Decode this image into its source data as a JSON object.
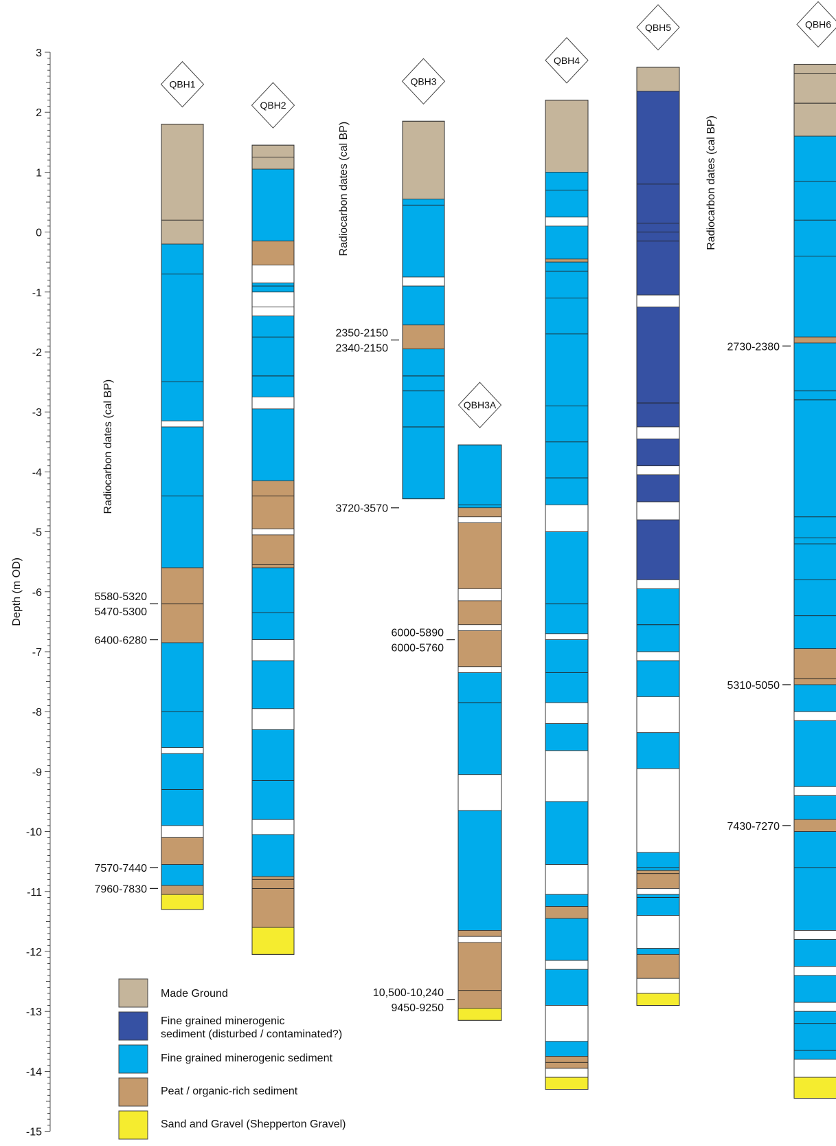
{
  "colors": {
    "made_ground": "#c5b59b",
    "fine_disturbed": "#3651a3",
    "fine": "#00aceb",
    "peat": "#c59a6c",
    "sand_gravel": "#f5ec2f",
    "gap": "#ffffff"
  },
  "axis": {
    "label": "Depth (m OD)",
    "min": -15,
    "max": 3,
    "ticks": [
      "3",
      "2",
      "1",
      "0",
      "-1",
      "-2",
      "-3",
      "-4",
      "-5",
      "-6",
      "-7",
      "-8",
      "-9",
      "-10",
      "-11",
      "-12",
      "-13",
      "-14",
      "-15"
    ]
  },
  "radiocarbon_heading": "Radiocarbon dates (cal BP)",
  "legend": [
    {
      "key": "made_ground",
      "label": "Made Ground"
    },
    {
      "key": "fine_disturbed",
      "label": "Fine grained minerogenic",
      "label2": "sediment (disturbed / contaminated?)"
    },
    {
      "key": "fine",
      "label": "Fine grained minerogenic sediment"
    },
    {
      "key": "peat",
      "label": "Peat / organic-rich sediment"
    },
    {
      "key": "sand_gravel",
      "label": "Sand and Gravel (Shepperton Gravel)"
    }
  ],
  "boreholes": [
    {
      "name": "QBH1",
      "top": 1.8,
      "layers": [
        {
          "b": -0.2,
          "t": "made_ground",
          "l": [
            0.2
          ]
        },
        {
          "b": -3.15,
          "t": "fine",
          "l": [
            -0.7,
            -2.5
          ]
        },
        {
          "b": -3.25,
          "t": "gap"
        },
        {
          "b": -5.6,
          "t": "fine",
          "l": [
            -4.4
          ]
        },
        {
          "b": -6.85,
          "t": "peat",
          "l": [
            -6.2
          ]
        },
        {
          "b": -8.6,
          "t": "fine",
          "l": [
            -8.0
          ]
        },
        {
          "b": -8.7,
          "t": "gap"
        },
        {
          "b": -9.9,
          "t": "fine",
          "l": [
            -9.3
          ]
        },
        {
          "b": -10.1,
          "t": "gap"
        },
        {
          "b": -10.55,
          "t": "peat"
        },
        {
          "b": -10.9,
          "t": "fine"
        },
        {
          "b": -11.05,
          "t": "peat"
        },
        {
          "b": -11.3,
          "t": "sand_gravel"
        }
      ],
      "dates": [
        {
          "depth": -6.2,
          "lines": [
            "5580-5320",
            "5470-5300"
          ]
        },
        {
          "depth": -6.8,
          "lines": [
            "6400-6280"
          ]
        },
        {
          "depth": -10.6,
          "lines": [
            "7570-7440"
          ]
        },
        {
          "depth": -10.95,
          "lines": [
            "7960-7830"
          ]
        }
      ]
    },
    {
      "name": "QBH2",
      "top": 1.45,
      "layers": [
        {
          "b": 1.05,
          "t": "made_ground",
          "l": [
            1.25
          ]
        },
        {
          "b": -0.15,
          "t": "fine"
        },
        {
          "b": -0.55,
          "t": "peat"
        },
        {
          "b": -0.85,
          "t": "gap"
        },
        {
          "b": -1.0,
          "t": "fine",
          "l": [
            -0.9
          ]
        },
        {
          "b": -1.4,
          "t": "gap",
          "l": [
            -1.25
          ]
        },
        {
          "b": -2.75,
          "t": "fine",
          "l": [
            -1.75,
            -2.4
          ]
        },
        {
          "b": -2.95,
          "t": "gap"
        },
        {
          "b": -4.15,
          "t": "peat_fix_fine"
        },
        {
          "b": -4.95,
          "t": "peat",
          "l": [
            -4.4
          ]
        },
        {
          "b": -5.05,
          "t": "gap"
        },
        {
          "b": -5.6,
          "t": "peat",
          "l": [
            -5.55
          ]
        },
        {
          "b": -6.8,
          "t": "fine",
          "l": [
            -6.35
          ]
        },
        {
          "b": -7.15,
          "t": "gap"
        },
        {
          "b": -7.95,
          "t": "fine"
        },
        {
          "b": -8.3,
          "t": "gap"
        },
        {
          "b": -9.8,
          "t": "fine",
          "l": [
            -9.15
          ]
        },
        {
          "b": -10.05,
          "t": "gap"
        },
        {
          "b": -10.75,
          "t": "fine"
        },
        {
          "b": -11.6,
          "t": "peat",
          "l": [
            -10.8,
            -10.95
          ]
        },
        {
          "b": -12.05,
          "t": "sand_gravel"
        }
      ],
      "dates": []
    },
    {
      "name": "QBH3",
      "top": 1.85,
      "layers": [
        {
          "b": 0.55,
          "t": "made_ground"
        },
        {
          "b": -0.75,
          "t": "fine",
          "l": [
            0.45
          ]
        },
        {
          "b": -0.9,
          "t": "gap"
        },
        {
          "b": -1.55,
          "t": "fine"
        },
        {
          "b": -1.95,
          "t": "peat"
        },
        {
          "b": -4.45,
          "t": "fine",
          "l": [
            -2.4,
            -2.65,
            -3.25
          ]
        }
      ],
      "dates": [
        {
          "depth": -1.8,
          "lines": [
            "2350-2150",
            "2340-2150"
          ]
        },
        {
          "depth": -4.6,
          "lines": [
            "3720-3570"
          ]
        }
      ]
    },
    {
      "name": "QBH3A",
      "top": -3.55,
      "layers": [
        {
          "b": -4.6,
          "t": "fine",
          "l": [
            -4.55
          ]
        },
        {
          "b": -4.75,
          "t": "peat"
        },
        {
          "b": -4.85,
          "t": "gap"
        },
        {
          "b": -5.95,
          "t": "peat"
        },
        {
          "b": -6.15,
          "t": "gap"
        },
        {
          "b": -6.55,
          "t": "peat"
        },
        {
          "b": -6.65,
          "t": "gap"
        },
        {
          "b": -7.25,
          "t": "peat"
        },
        {
          "b": -7.35,
          "t": "gap"
        },
        {
          "b": -9.05,
          "t": "fine",
          "l": [
            -7.85
          ]
        },
        {
          "b": -9.65,
          "t": "gap"
        },
        {
          "b": -11.65,
          "t": "fine"
        },
        {
          "b": -11.75,
          "t": "peat"
        },
        {
          "b": -11.85,
          "t": "gap"
        },
        {
          "b": -12.95,
          "t": "peat",
          "l": [
            -12.65
          ]
        },
        {
          "b": -13.15,
          "t": "sand_gravel"
        }
      ],
      "dates": [
        {
          "depth": -6.8,
          "lines": [
            "6000-5890",
            "6000-5760"
          ]
        },
        {
          "depth": -12.8,
          "lines": [
            "10,500-10,240",
            "9450-9250"
          ]
        }
      ]
    },
    {
      "name": "QBH4",
      "top": 2.2,
      "layers": [
        {
          "b": 1.0,
          "t": "made_ground"
        },
        {
          "b": 0.25,
          "t": "fine",
          "l": [
            0.7
          ]
        },
        {
          "b": 0.1,
          "t": "gap"
        },
        {
          "b": -0.45,
          "t": "fine"
        },
        {
          "b": -0.5,
          "t": "peat"
        },
        {
          "b": -4.55,
          "t": "fine",
          "l": [
            -0.65,
            -1.1,
            -1.7,
            -2.9,
            -3.5,
            -4.1
          ]
        },
        {
          "b": -5.0,
          "t": "gap"
        },
        {
          "b": -6.7,
          "t": "fine",
          "l": [
            -6.2
          ]
        },
        {
          "b": -6.8,
          "t": "gap"
        },
        {
          "b": -7.85,
          "t": "fine",
          "l": [
            -7.35
          ]
        },
        {
          "b": -8.2,
          "t": "gap"
        },
        {
          "b": -8.65,
          "t": "fine"
        },
        {
          "b": -9.5,
          "t": "gap"
        },
        {
          "b": -10.55,
          "t": "fine"
        },
        {
          "b": -11.05,
          "t": "gap"
        },
        {
          "b": -11.25,
          "t": "fine"
        },
        {
          "b": -11.45,
          "t": "peat"
        },
        {
          "b": -12.15,
          "t": "fine"
        },
        {
          "b": -12.3,
          "t": "gap"
        },
        {
          "b": -12.9,
          "t": "fine"
        },
        {
          "b": -13.5,
          "t": "gap"
        },
        {
          "b": -13.75,
          "t": "fine"
        },
        {
          "b": -13.95,
          "t": "peat",
          "l": [
            -13.85
          ]
        },
        {
          "b": -14.1,
          "t": "gap"
        },
        {
          "b": -14.3,
          "t": "sand_gravel"
        }
      ],
      "dates": []
    },
    {
      "name": "QBH5",
      "top": 2.75,
      "layers": [
        {
          "b": 2.35,
          "t": "made_ground"
        },
        {
          "b": -1.05,
          "t": "fine_disturbed",
          "l": [
            0.8,
            0.15,
            0.0,
            -0.15
          ]
        },
        {
          "b": -1.25,
          "t": "gap"
        },
        {
          "b": -3.25,
          "t": "fine_disturbed",
          "l": [
            -2.85
          ]
        },
        {
          "b": -3.45,
          "t": "gap"
        },
        {
          "b": -3.9,
          "t": "fine_disturbed"
        },
        {
          "b": -4.05,
          "t": "gap"
        },
        {
          "b": -4.5,
          "t": "fine_disturbed"
        },
        {
          "b": -4.8,
          "t": "gap"
        },
        {
          "b": -5.8,
          "t": "fine_disturbed"
        },
        {
          "b": -5.95,
          "t": "gap"
        },
        {
          "b": -7.0,
          "t": "fine",
          "l": [
            -6.55
          ]
        },
        {
          "b": -7.15,
          "t": "gap"
        },
        {
          "b": -7.75,
          "t": "fine"
        },
        {
          "b": -8.35,
          "t": "gap"
        },
        {
          "b": -8.95,
          "t": "fine"
        },
        {
          "b": -10.35,
          "t": "gap"
        },
        {
          "b": -10.65,
          "t": "fine",
          "l": [
            -10.6
          ]
        },
        {
          "b": -10.95,
          "t": "peat",
          "l": [
            -10.7
          ]
        },
        {
          "b": -11.05,
          "t": "gap"
        },
        {
          "b": -11.4,
          "t": "fine",
          "l": [
            -11.1
          ]
        },
        {
          "b": -11.95,
          "t": "gap"
        },
        {
          "b": -12.05,
          "t": "fine"
        },
        {
          "b": -12.45,
          "t": "peat"
        },
        {
          "b": -12.7,
          "t": "gap"
        },
        {
          "b": -12.9,
          "t": "sand_gravel"
        }
      ],
      "dates": []
    },
    {
      "name": "QBH6",
      "top": 2.8,
      "layers": [
        {
          "b": 1.6,
          "t": "made_ground",
          "l": [
            2.65,
            2.15
          ]
        },
        {
          "b": -1.75,
          "t": "fine",
          "l": [
            0.85,
            0.2,
            -0.4
          ]
        },
        {
          "b": -1.85,
          "t": "peat"
        },
        {
          "b": -6.95,
          "t": "fine",
          "l": [
            -2.65,
            -2.8,
            -4.75,
            -5.1,
            -5.2,
            -5.8,
            -6.4
          ]
        },
        {
          "b": -7.55,
          "t": "peat",
          "l": [
            -7.45
          ]
        },
        {
          "b": -8.0,
          "t": "fine"
        },
        {
          "b": -8.15,
          "t": "gap"
        },
        {
          "b": -9.25,
          "t": "fine"
        },
        {
          "b": -9.4,
          "t": "gap"
        },
        {
          "b": -9.8,
          "t": "fine"
        },
        {
          "b": -10.0,
          "t": "peat"
        },
        {
          "b": -11.65,
          "t": "fine",
          "l": [
            -10.6
          ]
        },
        {
          "b": -11.8,
          "t": "gap"
        },
        {
          "b": -12.25,
          "t": "fine"
        },
        {
          "b": -12.4,
          "t": "gap"
        },
        {
          "b": -12.85,
          "t": "fine"
        },
        {
          "b": -13.0,
          "t": "gap"
        },
        {
          "b": -13.8,
          "t": "fine",
          "l": [
            -13.2,
            -13.65
          ]
        },
        {
          "b": -14.1,
          "t": "gap"
        },
        {
          "b": -14.45,
          "t": "sand_gravel"
        }
      ],
      "dates": [
        {
          "depth": -1.9,
          "lines": [
            "2730-2380"
          ]
        },
        {
          "depth": -7.55,
          "lines": [
            "5310-5050"
          ]
        },
        {
          "depth": -9.9,
          "lines": [
            "7430-7270"
          ]
        }
      ]
    }
  ]
}
